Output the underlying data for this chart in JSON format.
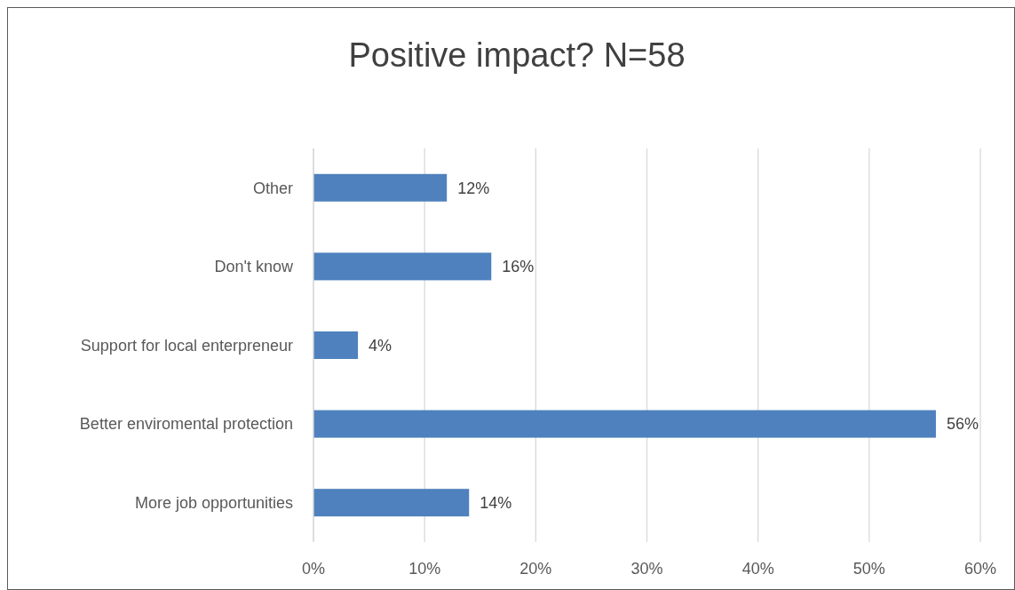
{
  "chart_data": {
    "type": "bar",
    "orientation": "horizontal",
    "title": "Positive impact? N=58",
    "categories": [
      "Other",
      "Don't know",
      "Support for local enterpreneur",
      "Better enviromental protection",
      "More job opportunities"
    ],
    "values": [
      12,
      16,
      4,
      56,
      14
    ],
    "value_labels": [
      "12%",
      "16%",
      "4%",
      "56%",
      "14%"
    ],
    "color": "#4e81bd",
    "xlim": [
      0,
      60
    ],
    "xticks": [
      {
        "value": 0,
        "label": "0%"
      },
      {
        "value": 10,
        "label": "10%"
      },
      {
        "value": 20,
        "label": "20%"
      },
      {
        "value": 30,
        "label": "30%"
      },
      {
        "value": 40,
        "label": "40%"
      },
      {
        "value": 50,
        "label": "50%"
      },
      {
        "value": 60,
        "label": "60%"
      }
    ],
    "grid": "x"
  }
}
